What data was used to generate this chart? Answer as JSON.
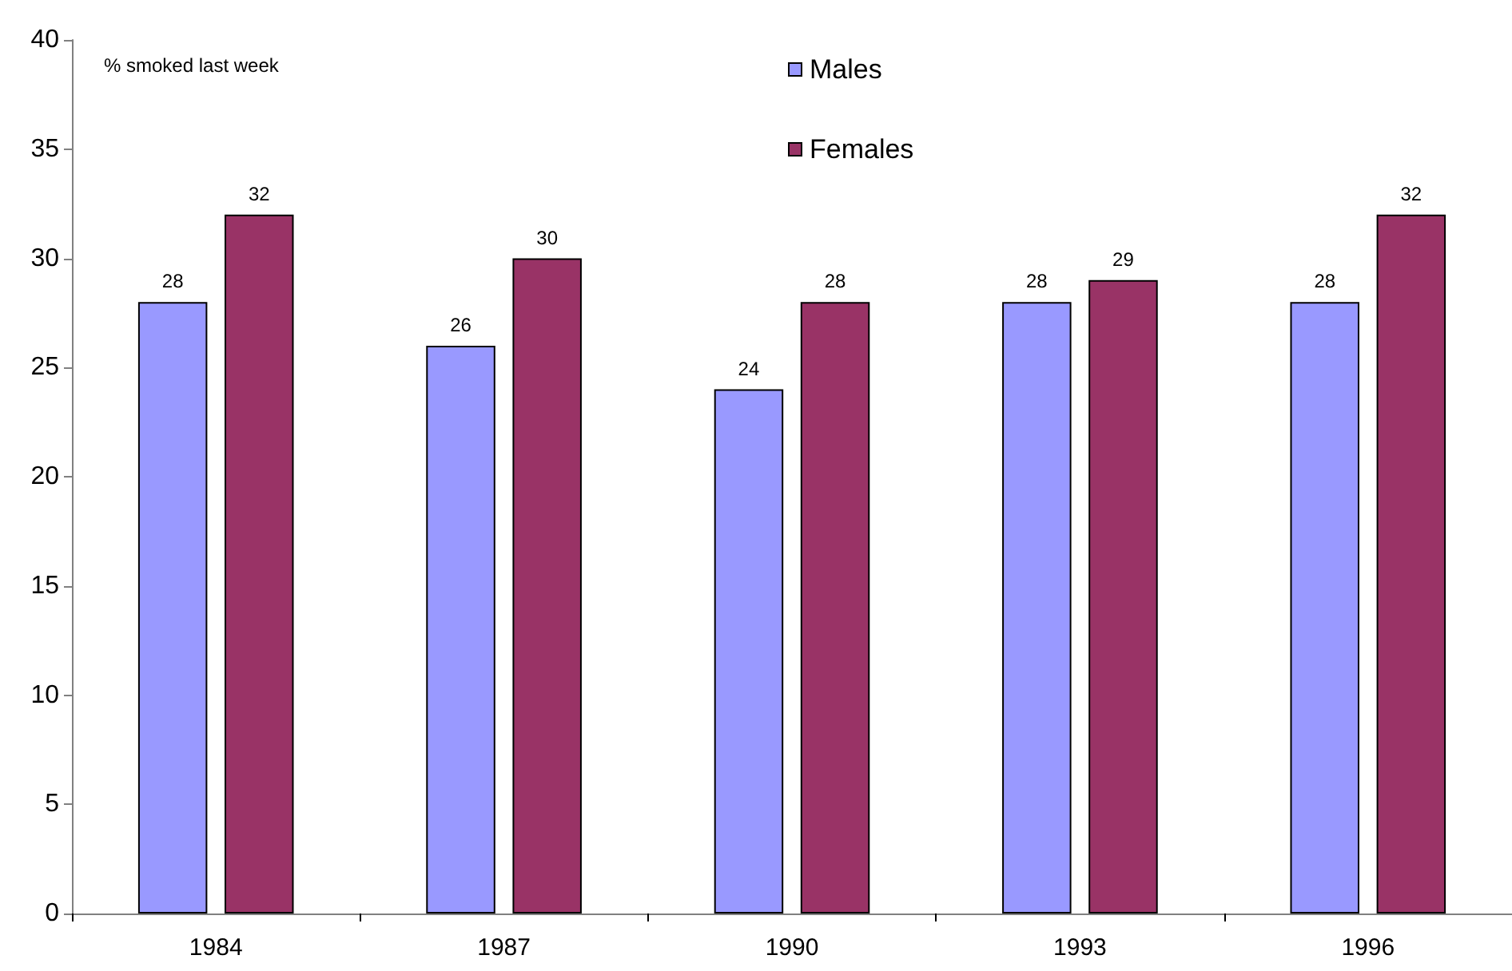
{
  "chart_data": {
    "type": "bar",
    "ylabel": "% smoked last week",
    "categories": [
      "1984",
      "1987",
      "1990",
      "1993",
      "1996"
    ],
    "series": [
      {
        "name": "Males",
        "color": "#9999ff",
        "values": [
          28,
          26,
          24,
          28,
          28
        ]
      },
      {
        "name": "Females",
        "color": "#993366",
        "values": [
          32,
          30,
          28,
          29,
          32
        ]
      }
    ],
    "ylim": [
      0,
      40
    ],
    "yticks": [
      0,
      5,
      10,
      15,
      20,
      25,
      30,
      35,
      40
    ],
    "data_labels": true,
    "grid": false,
    "legend": "top"
  }
}
